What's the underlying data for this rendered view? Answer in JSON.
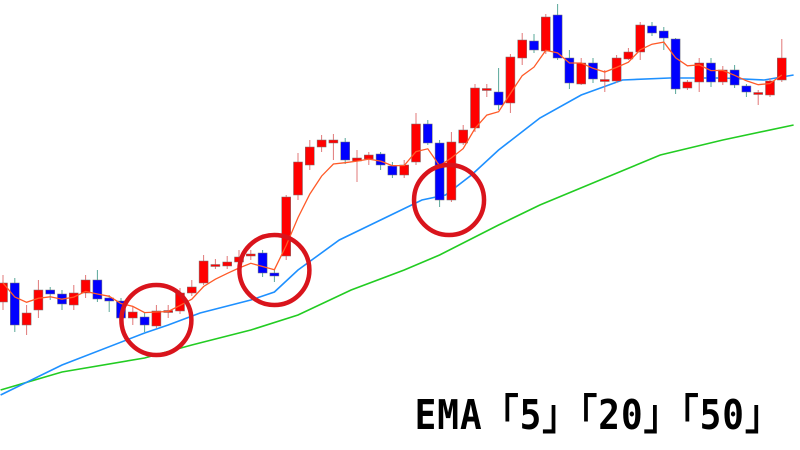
{
  "chart_data": {
    "type": "candlestick",
    "title": "",
    "xlabel": "",
    "ylabel": "",
    "ylim": [
      0,
      450
    ],
    "grid": false,
    "colors": {
      "bullish": "#ff0000",
      "bearish": "#0000ff",
      "wick_bull": "#e07878",
      "wick_bear": "#5aa89a",
      "ema5": "#ff5a28",
      "ema20": "#1e90ff",
      "ema50": "#22cc22",
      "highlight": "#d9141c"
    },
    "candles_ohlc": [
      [
        148,
        175,
        140,
        167
      ],
      [
        167,
        172,
        118,
        125
      ],
      [
        125,
        145,
        115,
        137
      ],
      [
        140,
        170,
        132,
        160
      ],
      [
        160,
        163,
        150,
        156
      ],
      [
        156,
        160,
        140,
        146
      ],
      [
        145,
        165,
        140,
        157
      ],
      [
        157,
        175,
        152,
        170
      ],
      [
        170,
        180,
        148,
        151
      ],
      [
        152,
        155,
        138,
        149
      ],
      [
        149,
        152,
        128,
        132
      ],
      [
        132,
        144,
        125,
        138
      ],
      [
        133,
        137,
        118,
        125
      ],
      [
        124,
        145,
        122,
        139
      ],
      [
        139,
        145,
        132,
        139.5
      ],
      [
        139,
        162,
        136,
        157
      ],
      [
        157,
        170,
        154,
        163
      ],
      [
        167,
        195,
        165,
        189
      ],
      [
        185,
        191,
        181,
        185.5
      ],
      [
        184,
        194,
        181,
        188
      ],
      [
        188,
        200,
        185,
        193
      ],
      [
        194,
        200,
        190,
        196
      ],
      [
        197,
        200,
        173,
        177
      ],
      [
        177,
        180,
        168,
        174
      ],
      [
        194,
        255,
        190,
        253
      ],
      [
        255,
        297,
        250,
        288
      ],
      [
        285,
        310,
        280,
        303
      ],
      [
        303,
        315,
        298,
        310
      ],
      [
        307,
        316,
        290,
        310
      ],
      [
        308,
        312,
        286,
        290
      ],
      [
        289,
        300,
        268,
        292
      ],
      [
        291,
        298,
        285,
        295
      ],
      [
        296,
        298,
        280,
        285
      ],
      [
        284,
        288,
        272,
        275
      ],
      [
        275,
        290,
        272,
        285
      ],
      [
        288,
        337,
        285,
        326
      ],
      [
        326,
        330,
        305,
        307
      ],
      [
        307,
        310,
        243,
        250
      ],
      [
        250,
        318,
        248,
        308
      ],
      [
        307,
        325,
        305,
        320
      ],
      [
        322,
        366,
        318,
        362
      ],
      [
        361,
        366,
        353,
        361.5
      ],
      [
        358,
        382,
        340,
        345
      ],
      [
        347,
        396,
        337,
        393
      ],
      [
        392,
        417,
        385,
        410
      ],
      [
        409,
        416,
        397,
        400
      ],
      [
        399,
        436,
        396,
        433
      ],
      [
        435,
        446,
        390,
        392
      ],
      [
        392,
        400,
        361,
        367
      ],
      [
        366,
        392,
        365,
        387
      ],
      [
        387,
        392,
        367,
        371
      ],
      [
        370,
        380,
        358,
        370.5
      ],
      [
        369,
        395,
        367,
        392
      ],
      [
        391,
        402,
        390,
        398
      ],
      [
        398,
        428,
        390,
        425
      ],
      [
        424,
        428,
        414,
        417
      ],
      [
        419,
        423,
        400,
        412
      ],
      [
        411,
        412,
        356,
        361
      ],
      [
        362,
        370,
        360,
        368
      ],
      [
        368,
        392,
        358,
        387
      ],
      [
        387,
        392,
        363,
        368
      ],
      [
        368,
        384,
        365,
        380
      ],
      [
        380,
        385,
        362,
        365
      ],
      [
        364,
        366,
        353,
        358
      ],
      [
        357,
        360,
        345,
        357.5
      ],
      [
        355,
        372,
        353,
        369
      ],
      [
        370,
        411,
        368,
        392
      ]
    ],
    "series": [
      {
        "name": "5",
        "period": 5,
        "computed_from": "close"
      },
      {
        "name": "20",
        "period": 20,
        "points": [
          [
            0.8,
            55
          ],
          [
            6,
            85
          ],
          [
            13,
            117
          ],
          [
            15,
            125
          ],
          [
            17.7,
            137
          ],
          [
            22,
            150
          ],
          [
            24,
            158
          ],
          [
            26,
            180
          ],
          [
            29.5,
            210
          ],
          [
            33,
            230
          ],
          [
            36.5,
            250
          ],
          [
            38.5,
            255
          ],
          [
            40.7,
            275
          ],
          [
            43,
            300
          ],
          [
            46.5,
            332
          ],
          [
            50,
            355
          ],
          [
            53.5,
            370
          ],
          [
            57.5,
            372
          ],
          [
            62,
            372
          ],
          [
            65.5,
            370
          ],
          [
            68,
            375
          ]
        ]
      },
      {
        "name": "50",
        "period": 50,
        "points": [
          [
            0.8,
            60
          ],
          [
            6,
            78
          ],
          [
            13,
            92
          ],
          [
            17,
            105
          ],
          [
            22,
            120
          ],
          [
            26,
            135
          ],
          [
            30.5,
            160
          ],
          [
            35,
            180
          ],
          [
            38,
            195
          ],
          [
            43,
            225
          ],
          [
            46.5,
            245
          ],
          [
            51.6,
            270
          ],
          [
            56.7,
            295
          ],
          [
            62,
            310
          ],
          [
            68,
            325
          ]
        ]
      }
    ],
    "highlights": [
      {
        "candle": 14,
        "value": 130
      },
      {
        "candle": 24,
        "value": 180
      },
      {
        "candle": 38.8,
        "value": 250
      }
    ]
  },
  "caption": "EMA「5」「20」「50」"
}
